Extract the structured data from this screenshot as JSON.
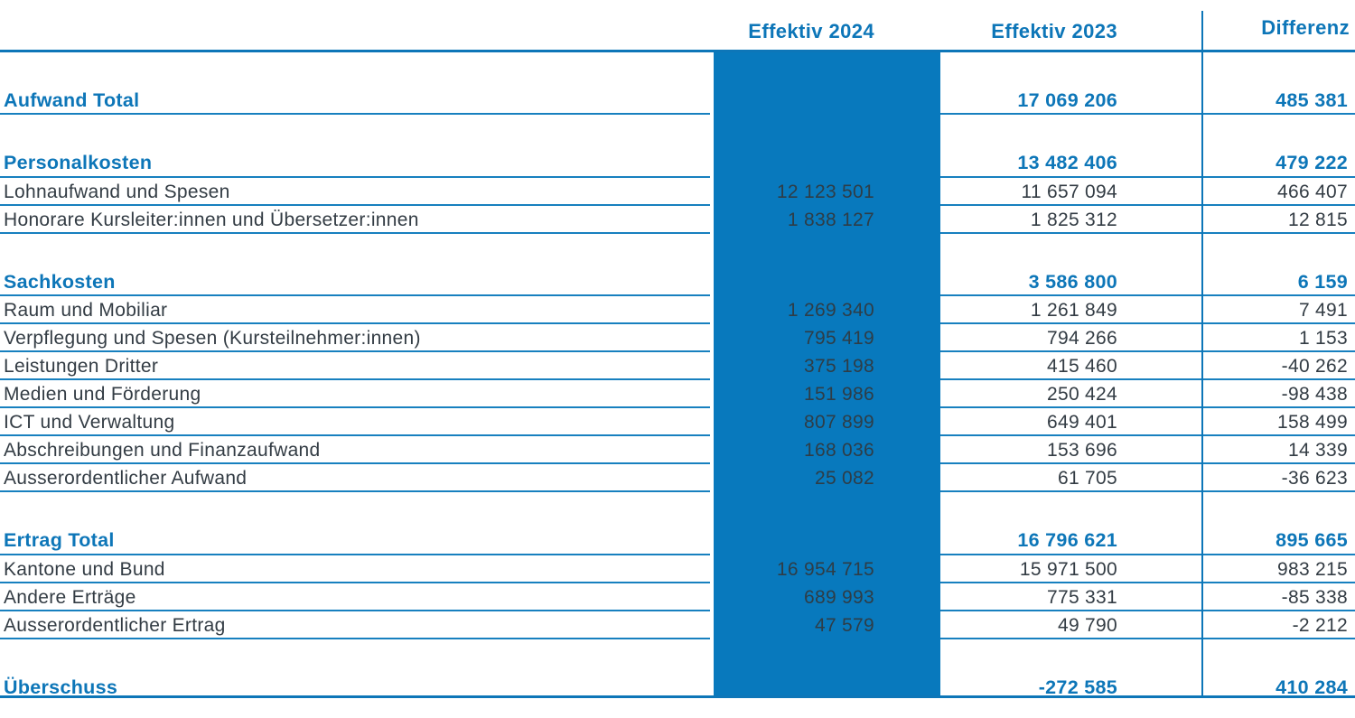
{
  "colors": {
    "brand_blue": "#0d76b8",
    "band_blue": "#0879bd",
    "line_blue": "#1780bf",
    "text_dark": "#333c44",
    "band_text": "#2e3d47"
  },
  "table": {
    "columns": [
      {
        "label": "Effektiv 2024"
      },
      {
        "label": "Effektiv 2023"
      },
      {
        "label": "Differenz"
      }
    ],
    "rows": [
      {
        "type": "spacer"
      },
      {
        "type": "total",
        "label": "Aufwand Total",
        "v2024": "",
        "v2023": "17 069 206",
        "diff": "485 381"
      },
      {
        "type": "spacer"
      },
      {
        "type": "total",
        "label": "Personalkosten",
        "v2024": "",
        "v2023": "13 482 406",
        "diff": "479 222"
      },
      {
        "type": "item",
        "label": "Lohnaufwand und Spesen",
        "v2024": "12 123 501",
        "v2023": "11 657 094",
        "diff": "466 407"
      },
      {
        "type": "item",
        "label": "Honorare Kursleiter:innen und Übersetzer:innen",
        "v2024": "1 838 127",
        "v2023": "1 825 312",
        "diff": "12 815"
      },
      {
        "type": "spacer"
      },
      {
        "type": "total",
        "label": "Sachkosten",
        "v2024": "",
        "v2023": "3 586 800",
        "diff": "6 159"
      },
      {
        "type": "item",
        "label": "Raum und Mobiliar",
        "v2024": "1 269 340",
        "v2023": "1 261 849",
        "diff": "7 491"
      },
      {
        "type": "item",
        "label": "Verpflegung und Spesen (Kursteilnehmer:innen)",
        "v2024": "795 419",
        "v2023": "794 266",
        "diff": "1 153"
      },
      {
        "type": "item",
        "label": "Leistungen Dritter",
        "v2024": "375 198",
        "v2023": "415 460",
        "diff": "-40 262"
      },
      {
        "type": "item",
        "label": "Medien und Förderung",
        "v2024": "151 986",
        "v2023": "250 424",
        "diff": "-98 438"
      },
      {
        "type": "item",
        "label": "ICT und Verwaltung",
        "v2024": "807 899",
        "v2023": "649 401",
        "diff": "158 499"
      },
      {
        "type": "item",
        "label": "Abschreibungen und Finanzaufwand",
        "v2024": "168 036",
        "v2023": "153 696",
        "diff": "14 339"
      },
      {
        "type": "item",
        "label": "Ausserordentlicher Aufwand",
        "v2024": "25 082",
        "v2023": "61 705",
        "diff": "-36 623"
      },
      {
        "type": "spacer"
      },
      {
        "type": "total",
        "label": "Ertrag Total",
        "v2024": "",
        "v2023": "16 796 621",
        "diff": "895 665"
      },
      {
        "type": "item",
        "label": "Kantone und Bund",
        "v2024": "16 954 715",
        "v2023": "15 971 500",
        "diff": "983 215"
      },
      {
        "type": "item",
        "label": "Andere Erträge",
        "v2024": "689 993",
        "v2023": "775 331",
        "diff": "-85 338"
      },
      {
        "type": "item",
        "label": "Ausserordentlicher Ertrag",
        "v2024": "47 579",
        "v2023": "49 790",
        "diff": "-2 212"
      },
      {
        "type": "spacer"
      },
      {
        "type": "total",
        "label": "Überschuss",
        "v2024": "",
        "v2023": "-272 585",
        "diff": "410 284",
        "last": true
      }
    ]
  }
}
